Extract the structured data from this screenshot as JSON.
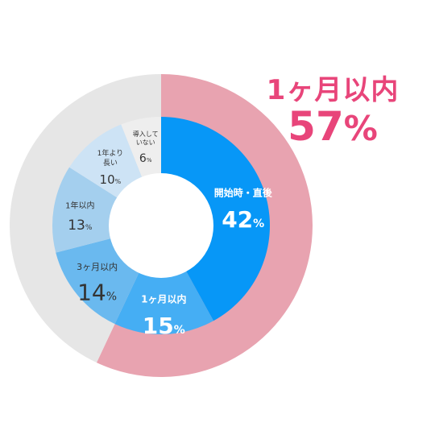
{
  "chart_data": {
    "type": "pie",
    "outer_ring": {
      "segments": [
        {
          "label": "1ヶ月以内",
          "value": 57,
          "color": "#e8a3b0"
        },
        {
          "label": "",
          "value": 43,
          "color": "#e6e6e6"
        }
      ]
    },
    "inner_ring": {
      "segments": [
        {
          "label": "開始時・直後",
          "value": 42,
          "unit": "%",
          "color": "#0797f7",
          "text_color": "#ffffff",
          "label_lines": [
            "開始時・直後"
          ]
        },
        {
          "label": "1ヶ月以内",
          "value": 15,
          "unit": "%",
          "color": "#45aef4",
          "text_color": "#ffffff",
          "label_lines": [
            "1ヶ月以内"
          ]
        },
        {
          "label": "3ヶ月以内",
          "value": 14,
          "unit": "%",
          "color": "#6ab9ef",
          "text_color": "#333333",
          "label_lines": [
            "3ヶ月以内"
          ]
        },
        {
          "label": "1年以内",
          "value": 13,
          "unit": "%",
          "color": "#a4cfee",
          "text_color": "#333333",
          "label_lines": [
            "1年以内"
          ]
        },
        {
          "label": "1年より長い",
          "value": 10,
          "unit": "%",
          "color": "#cde3f5",
          "text_color": "#333333",
          "label_lines": [
            "1年より",
            "長い"
          ]
        },
        {
          "label": "導入していない",
          "value": 6,
          "unit": "%",
          "color": "#eeeeee",
          "text_color": "#333333",
          "label_lines": [
            "導入して",
            "いない"
          ]
        }
      ]
    }
  },
  "callout": {
    "label": "1ヶ月以内",
    "value": "57",
    "unit": "%",
    "color": "#e8457a"
  }
}
